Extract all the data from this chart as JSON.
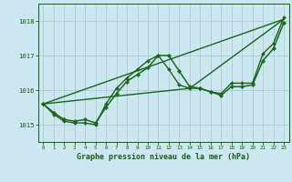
{
  "background_color": "#cce8ee",
  "grid_color": "#aaccd4",
  "line_color_dark": "#1a5c1a",
  "xlabel": "Graphe pression niveau de la mer (hPa)",
  "xlim": [
    -0.5,
    23.5
  ],
  "ylim": [
    1014.5,
    1018.5
  ],
  "yticks": [
    1015,
    1016,
    1017,
    1018
  ],
  "xticks": [
    0,
    1,
    2,
    3,
    4,
    5,
    6,
    7,
    8,
    9,
    10,
    11,
    12,
    13,
    14,
    15,
    16,
    17,
    18,
    19,
    20,
    21,
    22,
    23
  ],
  "series": [
    {
      "x": [
        0,
        23
      ],
      "y": [
        1015.6,
        1018.05
      ],
      "color": "#1a6020",
      "linewidth": 1.0,
      "marker": null,
      "markersize": 0
    },
    {
      "x": [
        0,
        14,
        23
      ],
      "y": [
        1015.6,
        1016.05,
        1018.05
      ],
      "color": "#1a6020",
      "linewidth": 1.0,
      "marker": null,
      "markersize": 0
    },
    {
      "x": [
        0,
        1,
        2,
        3,
        4,
        5,
        6,
        7,
        8,
        9,
        10,
        11,
        12,
        13,
        14,
        15,
        16,
        17,
        18,
        19,
        20,
        21,
        22,
        23
      ],
      "y": [
        1015.6,
        1015.35,
        1015.15,
        1015.1,
        1015.15,
        1015.05,
        1015.5,
        1015.9,
        1016.25,
        1016.45,
        1016.65,
        1017.0,
        1017.0,
        1016.55,
        1016.1,
        1016.05,
        1015.95,
        1015.85,
        1016.1,
        1016.1,
        1016.15,
        1016.85,
        1017.2,
        1017.95
      ],
      "color": "#1a6b1a",
      "linewidth": 1.1,
      "marker": "D",
      "markersize": 2.3
    },
    {
      "x": [
        0,
        1,
        2,
        3,
        4,
        5,
        6,
        7,
        8,
        9,
        10,
        11,
        12,
        13,
        14,
        15,
        16,
        17,
        18,
        19,
        20,
        21,
        22,
        23
      ],
      "y": [
        1015.6,
        1015.3,
        1015.1,
        1015.05,
        1015.05,
        1015.0,
        1015.6,
        1016.05,
        1016.35,
        1016.6,
        1016.85,
        1017.0,
        1016.6,
        1016.15,
        1016.05,
        1016.05,
        1015.95,
        1015.9,
        1016.2,
        1016.2,
        1016.2,
        1017.05,
        1017.35,
        1018.1
      ],
      "color": "#206020",
      "linewidth": 1.0,
      "marker": "D",
      "markersize": 2.0
    }
  ]
}
